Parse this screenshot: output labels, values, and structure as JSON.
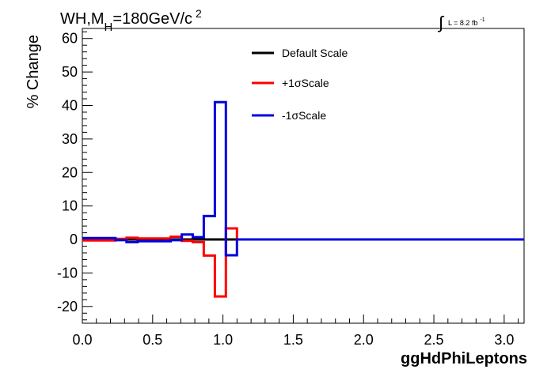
{
  "header": {
    "title_main": "WH,M",
    "title_sub": "H",
    "title_rest": "=180GeV/c",
    "title_sup": "2",
    "lumi_label": "L = 8.2 fb",
    "lumi_sup": "-1",
    "integral_symbol": "∫"
  },
  "chart_data": {
    "type": "line",
    "xlabel": "ggHdPhiLeptons",
    "ylabel": "% Change",
    "xlim": [
      0,
      3.1416
    ],
    "ylim": [
      -25,
      63
    ],
    "xticks": [
      "0.0",
      "0.5",
      "1.0",
      "1.5",
      "2.0",
      "2.5",
      "3.0"
    ],
    "yticks": [
      "-20",
      "-10",
      "0",
      "10",
      "20",
      "30",
      "40",
      "50",
      "60"
    ],
    "grid": false,
    "legend_position": "top-right",
    "bin_edges": [
      0.0,
      0.0785,
      0.1571,
      0.2356,
      0.3142,
      0.3927,
      0.4712,
      0.5498,
      0.6283,
      0.7069,
      0.7854,
      0.8639,
      0.9425,
      1.021,
      1.0996,
      1.1781,
      1.2566,
      1.3352,
      1.4137,
      1.4923,
      1.5708,
      1.6493,
      1.7279,
      1.8064,
      1.885,
      1.9635,
      2.042,
      2.1206,
      2.1991,
      2.2777,
      2.3562,
      2.4347,
      2.5133,
      2.5918,
      2.6704,
      2.7489,
      2.8274,
      2.906,
      2.9845,
      3.0631,
      3.1416
    ],
    "series": [
      {
        "name": "Default Scale",
        "color": "#000000",
        "values": [
          0,
          0,
          0,
          0,
          0,
          0,
          0,
          0,
          0,
          0,
          0,
          0,
          0,
          0,
          0,
          0,
          0,
          0,
          0,
          0,
          0,
          0,
          0,
          0,
          0,
          0,
          0,
          0,
          0,
          0,
          0,
          0,
          0,
          0,
          0,
          0,
          0,
          0,
          0,
          0
        ]
      },
      {
        "name": "+1σScale",
        "color": "#ff0000",
        "values": [
          -0.3,
          -0.3,
          -0.3,
          0.2,
          0.5,
          0.3,
          0.3,
          0.3,
          0.8,
          -0.4,
          -0.8,
          -4.8,
          -17,
          3.3,
          0,
          0,
          0,
          0,
          0,
          0,
          0,
          0,
          0,
          0,
          0,
          0,
          0,
          0,
          0,
          0,
          0,
          0,
          0,
          0,
          0,
          0,
          0,
          0,
          0,
          0
        ]
      },
      {
        "name": "-1σScale",
        "color": "#0000dd",
        "values": [
          0.4,
          0.4,
          0.4,
          -0.2,
          -0.8,
          -0.5,
          -0.5,
          -0.5,
          -0.2,
          1.5,
          0.7,
          7,
          41,
          -4.7,
          0,
          0,
          0,
          0,
          0,
          0,
          0,
          0,
          0,
          0,
          0,
          0,
          0,
          0,
          0,
          0,
          0,
          0,
          0,
          0,
          0,
          0,
          0,
          0,
          0,
          0
        ]
      }
    ]
  }
}
